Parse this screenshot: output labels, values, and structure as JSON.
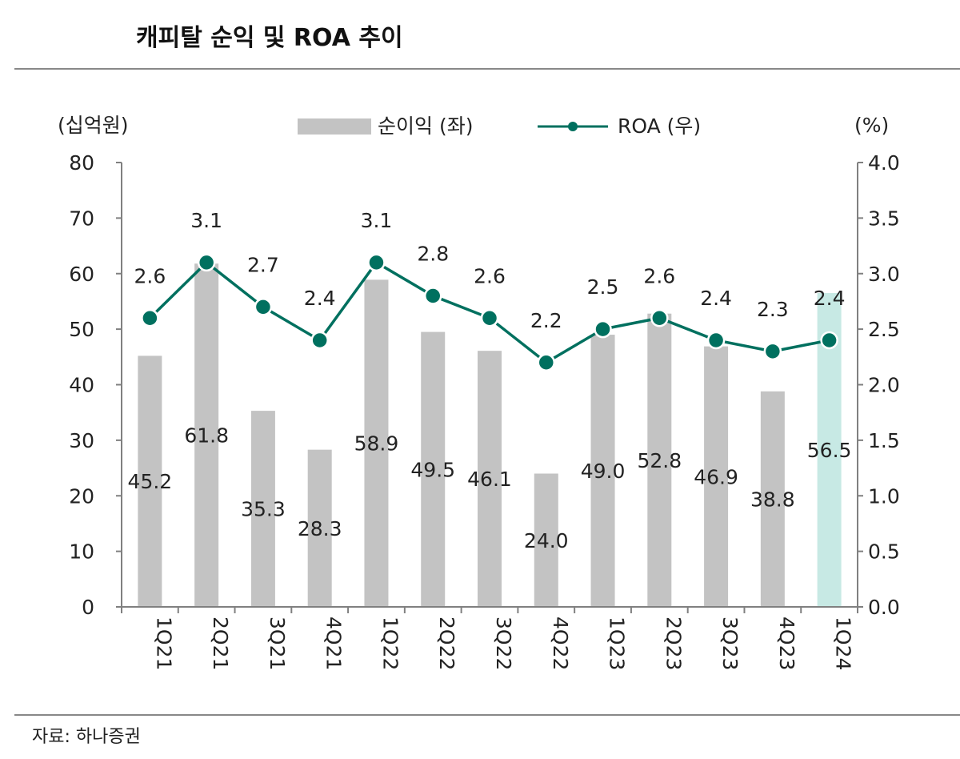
{
  "title": "캐피탈 순익 및 ROA 추이",
  "source": "자료: 하나증권",
  "colors": {
    "bar": "#c3c3c3",
    "highlight_bar": "#c7e9e4",
    "line": "#00705f",
    "axis": "#808080"
  },
  "chart_data": {
    "type": "bar+line",
    "categories": [
      "1Q21",
      "2Q21",
      "3Q21",
      "4Q21",
      "1Q22",
      "2Q22",
      "3Q22",
      "4Q22",
      "1Q23",
      "2Q23",
      "3Q23",
      "4Q23",
      "1Q24"
    ],
    "series": [
      {
        "name": "순이익 (좌)",
        "type": "bar",
        "axis": "left",
        "values": [
          45.2,
          61.8,
          35.3,
          28.3,
          58.9,
          49.5,
          46.1,
          24.0,
          49.0,
          52.8,
          46.9,
          38.8,
          56.5
        ],
        "labels": [
          "45.2",
          "61.8",
          "35.3",
          "28.3",
          "58.9",
          "49.5",
          "46.1",
          "24.0",
          "49.0",
          "52.8",
          "46.9",
          "38.8",
          "56.5"
        ]
      },
      {
        "name": "ROA (우)",
        "type": "line",
        "axis": "right",
        "values": [
          2.6,
          3.1,
          2.7,
          2.4,
          3.1,
          2.8,
          2.6,
          2.2,
          2.5,
          2.6,
          2.4,
          2.3,
          2.4
        ],
        "labels": [
          "2.6",
          "3.1",
          "2.7",
          "2.4",
          "3.1",
          "2.8",
          "2.6",
          "2.2",
          "2.5",
          "2.6",
          "2.4",
          "2.3",
          "2.4"
        ]
      }
    ],
    "highlighted_category": "1Q24",
    "left_axis": {
      "unit_label": "(십억원)",
      "range": [
        0,
        80
      ],
      "ticks": [
        "0",
        "10",
        "20",
        "30",
        "40",
        "50",
        "60",
        "70",
        "80"
      ]
    },
    "right_axis": {
      "unit_label": "(%)",
      "range": [
        0,
        4.0
      ],
      "ticks": [
        "0.0",
        "0.5",
        "1.0",
        "1.5",
        "2.0",
        "2.5",
        "3.0",
        "3.5",
        "4.0"
      ]
    },
    "legend_placement": "top-center",
    "grid": false
  }
}
